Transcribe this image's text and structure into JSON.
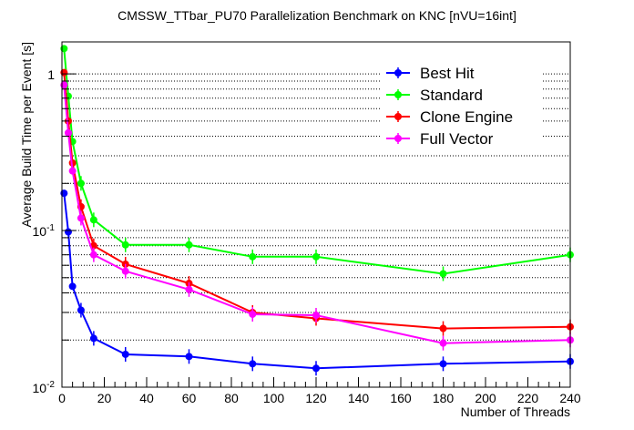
{
  "chart_data": {
    "type": "line",
    "title": "CMSSW_TTbar_PU70 Parallelization Benchmark on KNC [nVU=16int]",
    "xlabel": "Number of Threads",
    "ylabel": "Average Build Time per Event [s]",
    "x_scale": "linear",
    "y_scale": "log",
    "xlim": [
      0,
      240
    ],
    "ylim": [
      0.01,
      1.6
    ],
    "x_ticks": [
      0,
      20,
      40,
      60,
      80,
      100,
      120,
      140,
      160,
      180,
      200,
      220,
      240
    ],
    "x_tick_labels": [
      "0",
      "20",
      "40",
      "60",
      "80",
      "100",
      "120",
      "140",
      "160",
      "180",
      "200",
      "220",
      "240"
    ],
    "y_tick_labels": [
      {
        "base": "10",
        "exp": "-2"
      },
      {
        "base": "10",
        "exp": "-1"
      },
      {
        "base": "1",
        "exp": ""
      }
    ],
    "grid": "horizontal dotted",
    "legend_position": "top-right",
    "series": [
      {
        "name": "Best Hit",
        "color": "#0000ff",
        "x": [
          1,
          3,
          5,
          9,
          15,
          30,
          60,
          90,
          120,
          180,
          240
        ],
        "y": [
          0.173,
          0.098,
          0.044,
          0.031,
          0.0205,
          0.0162,
          0.0157,
          0.0141,
          0.0132,
          0.0141,
          0.0146
        ]
      },
      {
        "name": "Standard",
        "color": "#00ff00",
        "x": [
          1,
          3,
          5,
          9,
          15,
          30,
          60,
          90,
          120,
          180,
          240
        ],
        "y": [
          1.45,
          0.72,
          0.37,
          0.2,
          0.117,
          0.081,
          0.081,
          0.068,
          0.068,
          0.053,
          0.07
        ]
      },
      {
        "name": "Clone Engine",
        "color": "#ff0000",
        "x": [
          1,
          3,
          5,
          9,
          15,
          30,
          60,
          90,
          120,
          180,
          240
        ],
        "y": [
          1.02,
          0.5,
          0.27,
          0.142,
          0.08,
          0.061,
          0.046,
          0.03,
          0.0275,
          0.0237,
          0.0243
        ]
      },
      {
        "name": "Full Vector",
        "color": "#ff00ff",
        "x": [
          1,
          3,
          5,
          9,
          15,
          30,
          60,
          90,
          120,
          180,
          240
        ],
        "y": [
          0.85,
          0.42,
          0.24,
          0.12,
          0.07,
          0.055,
          0.042,
          0.0292,
          0.0288,
          0.0191,
          0.02
        ]
      }
    ]
  }
}
